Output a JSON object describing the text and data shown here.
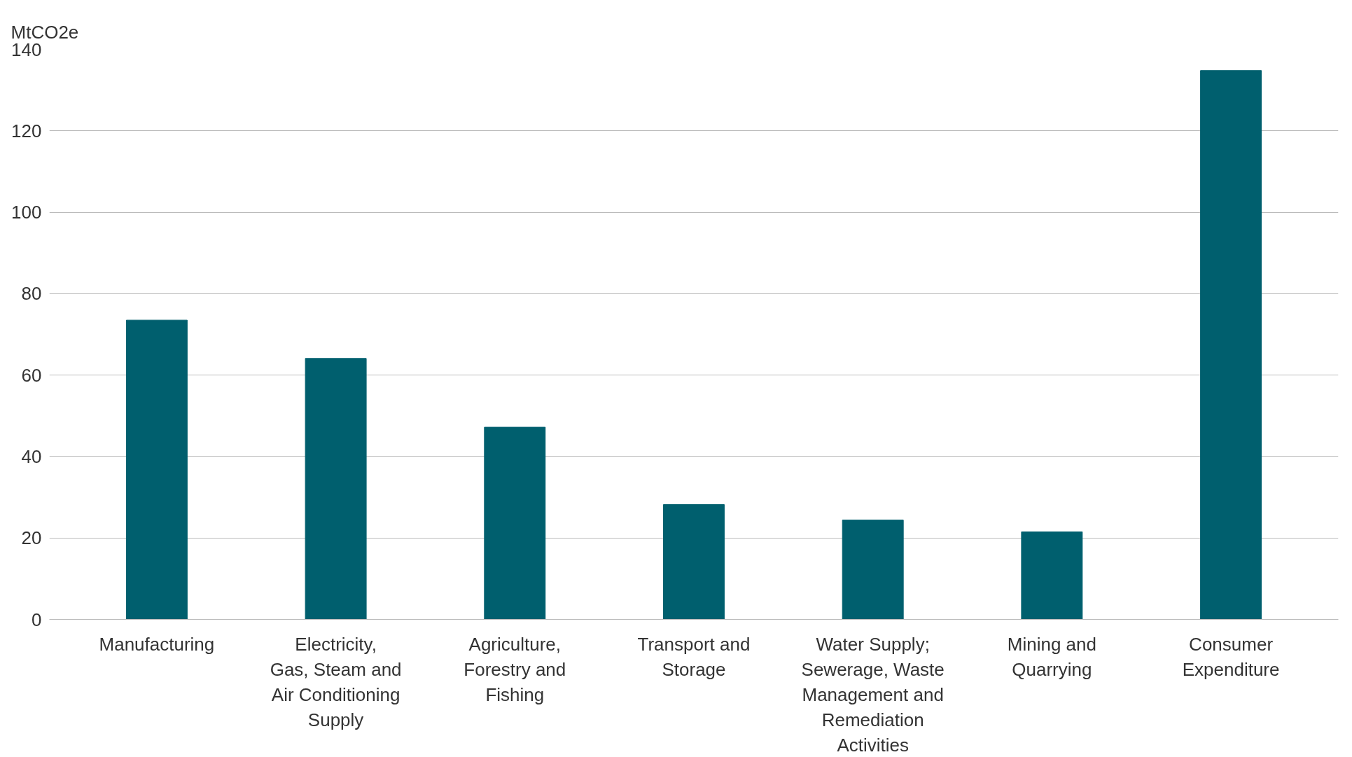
{
  "chart_data": {
    "type": "bar",
    "ylabel": "MtCO2e",
    "categories": [
      "Manufacturing",
      "Electricity, Gas, Steam and Air Conditioning Supply",
      "Agriculture, Forestry and Fishing",
      "Transport and Storage",
      "Water Supply; Sewerage, Waste Management and Remediation Activities",
      "Mining and Quarrying",
      "Consumer Expenditure"
    ],
    "values": [
      73.5,
      64.1,
      47.2,
      28.2,
      24.4,
      21.5,
      134.8
    ],
    "color": "#005f6e",
    "ylim": [
      0,
      140
    ],
    "yticks": [
      0,
      20,
      40,
      60,
      80,
      100,
      120,
      140
    ],
    "grid": "y"
  }
}
